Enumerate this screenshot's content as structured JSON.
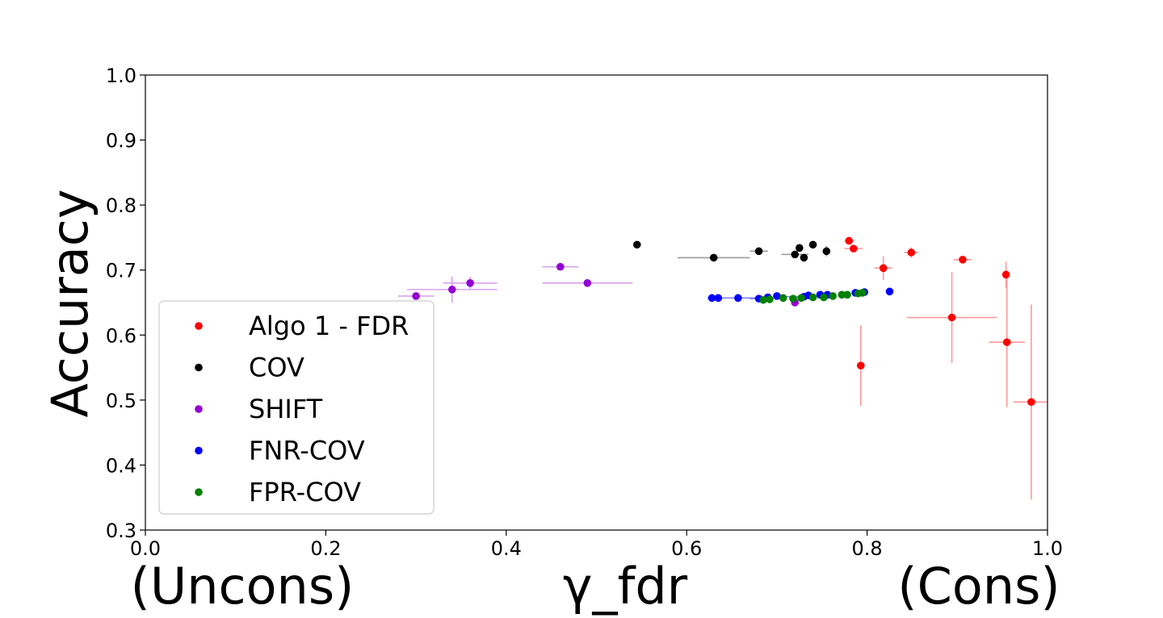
{
  "chart_data": {
    "type": "scatter",
    "title": "",
    "xlabel": "γ_fdr",
    "xlabel_left": "(Uncons)",
    "xlabel_right": "(Cons)",
    "ylabel": "Accuracy",
    "xlim": [
      0.0,
      1.0
    ],
    "ylim": [
      0.3,
      1.0
    ],
    "xticks": [
      "0.0",
      "0.2",
      "0.4",
      "0.6",
      "0.8",
      "1.0"
    ],
    "yticks": [
      "0.3",
      "0.4",
      "0.5",
      "0.6",
      "0.7",
      "0.8",
      "0.9",
      "1.0"
    ],
    "legend_position": "lower-left",
    "series": [
      {
        "name": "Algo 1 - FDR",
        "color": "#ff0000",
        "errcolor": "#ff9999",
        "points": [
          {
            "x": 0.78,
            "y": 0.745,
            "xerr": 0.005,
            "yerr": 0.004
          },
          {
            "x": 0.785,
            "y": 0.733,
            "xerr": 0.01,
            "yerr": 0.005
          },
          {
            "x": 0.818,
            "y": 0.703,
            "xerr": 0.01,
            "yerr": 0.018
          },
          {
            "x": 0.849,
            "y": 0.727,
            "xerr": 0.008,
            "yerr": 0.008
          },
          {
            "x": 0.906,
            "y": 0.716,
            "xerr": 0.01,
            "yerr": 0.005
          },
          {
            "x": 0.954,
            "y": 0.693,
            "xerr": 0.004,
            "yerr": 0.02
          },
          {
            "x": 0.793,
            "y": 0.553,
            "xerr": 0.003,
            "yerr": 0.062
          },
          {
            "x": 0.894,
            "y": 0.627,
            "xerr": 0.05,
            "yerr": 0.07
          },
          {
            "x": 0.955,
            "y": 0.589,
            "xerr": 0.02,
            "yerr": 0.1
          },
          {
            "x": 0.982,
            "y": 0.497,
            "xerr": 0.02,
            "yerr": 0.15
          }
        ]
      },
      {
        "name": "COV",
        "color": "#000000",
        "errcolor": "#999999",
        "points": [
          {
            "x": 0.545,
            "y": 0.739,
            "xerr": 0.0,
            "yerr": 0.0
          },
          {
            "x": 0.63,
            "y": 0.719,
            "xerr": 0.04,
            "yerr": 0.0
          },
          {
            "x": 0.68,
            "y": 0.729,
            "xerr": 0.01,
            "yerr": 0.0
          },
          {
            "x": 0.72,
            "y": 0.724,
            "xerr": 0.015,
            "yerr": 0.0
          },
          {
            "x": 0.725,
            "y": 0.734,
            "xerr": 0.0,
            "yerr": 0.005
          },
          {
            "x": 0.73,
            "y": 0.719,
            "xerr": 0.0,
            "yerr": 0.0
          },
          {
            "x": 0.74,
            "y": 0.739,
            "xerr": 0.0,
            "yerr": 0.0
          },
          {
            "x": 0.755,
            "y": 0.729,
            "xerr": 0.0,
            "yerr": 0.008
          }
        ]
      },
      {
        "name": "SHIFT",
        "color": "#9400d3",
        "errcolor": "#d9a3ee",
        "points": [
          {
            "x": 0.3,
            "y": 0.66,
            "xerr": 0.02,
            "yerr": 0.005
          },
          {
            "x": 0.34,
            "y": 0.67,
            "xerr": 0.05,
            "yerr": 0.02
          },
          {
            "x": 0.36,
            "y": 0.68,
            "xerr": 0.03,
            "yerr": 0.01
          },
          {
            "x": 0.46,
            "y": 0.705,
            "xerr": 0.02,
            "yerr": 0.0
          },
          {
            "x": 0.49,
            "y": 0.68,
            "xerr": 0.05,
            "yerr": 0.0
          },
          {
            "x": 0.72,
            "y": 0.65,
            "xerr": 0.0,
            "yerr": 0.005
          }
        ]
      },
      {
        "name": "FNR-COV",
        "color": "#0000ff",
        "errcolor": "#8080ff",
        "points": [
          {
            "x": 0.628,
            "y": 0.657,
            "xerr": 0.005,
            "yerr": 0.0
          },
          {
            "x": 0.635,
            "y": 0.657,
            "xerr": 0.0,
            "yerr": 0.0
          },
          {
            "x": 0.657,
            "y": 0.657,
            "xerr": 0.02,
            "yerr": 0.0
          },
          {
            "x": 0.68,
            "y": 0.656,
            "xerr": 0.01,
            "yerr": 0.0
          },
          {
            "x": 0.69,
            "y": 0.658,
            "xerr": 0.0,
            "yerr": 0.0
          },
          {
            "x": 0.7,
            "y": 0.66,
            "xerr": 0.0,
            "yerr": 0.0
          },
          {
            "x": 0.73,
            "y": 0.659,
            "xerr": 0.02,
            "yerr": 0.0
          },
          {
            "x": 0.735,
            "y": 0.661,
            "xerr": 0.0,
            "yerr": 0.0
          },
          {
            "x": 0.748,
            "y": 0.662,
            "xerr": 0.0,
            "yerr": 0.0
          },
          {
            "x": 0.756,
            "y": 0.662,
            "xerr": 0.0,
            "yerr": 0.0
          },
          {
            "x": 0.787,
            "y": 0.665,
            "xerr": 0.0,
            "yerr": 0.0
          },
          {
            "x": 0.797,
            "y": 0.666,
            "xerr": 0.0,
            "yerr": 0.0
          },
          {
            "x": 0.825,
            "y": 0.667,
            "xerr": 0.0,
            "yerr": 0.0
          }
        ]
      },
      {
        "name": "FPR-COV",
        "color": "#008000",
        "errcolor": "#80c080",
        "points": [
          {
            "x": 0.685,
            "y": 0.654,
            "xerr": 0.0,
            "yerr": 0.0
          },
          {
            "x": 0.692,
            "y": 0.655,
            "xerr": 0.0,
            "yerr": 0.0
          },
          {
            "x": 0.707,
            "y": 0.657,
            "xerr": 0.0,
            "yerr": 0.0
          },
          {
            "x": 0.718,
            "y": 0.656,
            "xerr": 0.0,
            "yerr": 0.0
          },
          {
            "x": 0.727,
            "y": 0.657,
            "xerr": 0.0,
            "yerr": 0.0
          },
          {
            "x": 0.74,
            "y": 0.658,
            "xerr": 0.0,
            "yerr": 0.0
          },
          {
            "x": 0.752,
            "y": 0.658,
            "xerr": 0.0,
            "yerr": 0.0
          },
          {
            "x": 0.762,
            "y": 0.66,
            "xerr": 0.0,
            "yerr": 0.0
          },
          {
            "x": 0.772,
            "y": 0.662,
            "xerr": 0.0,
            "yerr": 0.0
          },
          {
            "x": 0.778,
            "y": 0.662,
            "xerr": 0.0,
            "yerr": 0.0
          },
          {
            "x": 0.79,
            "y": 0.664,
            "xerr": 0.0,
            "yerr": 0.0
          },
          {
            "x": 0.795,
            "y": 0.665,
            "xerr": 0.0,
            "yerr": 0.0
          }
        ]
      }
    ]
  }
}
